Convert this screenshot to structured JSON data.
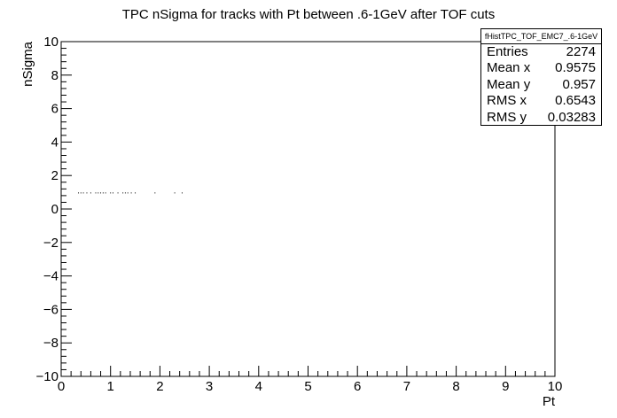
{
  "chart_data": {
    "type": "scatter",
    "title": "TPC nSigma for tracks with Pt between .6-1GeV after TOF cuts",
    "xlabel": "Pt",
    "ylabel": "nSigma",
    "xlim": [
      0,
      10
    ],
    "ylim": [
      -10,
      10
    ],
    "x_ticks": [
      0,
      1,
      2,
      3,
      4,
      5,
      6,
      7,
      8,
      9,
      10
    ],
    "y_ticks": [
      -10,
      -8,
      -6,
      -4,
      -2,
      0,
      2,
      4,
      6,
      8,
      10
    ],
    "x_tick_labels": [
      "0",
      "1",
      "2",
      "3",
      "4",
      "5",
      "6",
      "7",
      "8",
      "9",
      "10"
    ],
    "y_tick_labels": [
      "−10",
      "−8",
      "−6",
      "−4",
      "−2",
      "0",
      "2",
      "4",
      "6",
      "8",
      "10"
    ],
    "grid": false,
    "points": [
      {
        "x": 0.35,
        "y": 0.96
      },
      {
        "x": 0.4,
        "y": 0.96
      },
      {
        "x": 0.45,
        "y": 0.96
      },
      {
        "x": 0.52,
        "y": 0.96
      },
      {
        "x": 0.6,
        "y": 0.96
      },
      {
        "x": 0.7,
        "y": 0.96
      },
      {
        "x": 0.75,
        "y": 0.96
      },
      {
        "x": 0.8,
        "y": 0.96
      },
      {
        "x": 0.85,
        "y": 0.96
      },
      {
        "x": 0.9,
        "y": 0.96
      },
      {
        "x": 1.0,
        "y": 0.96
      },
      {
        "x": 1.05,
        "y": 0.96
      },
      {
        "x": 1.15,
        "y": 0.96
      },
      {
        "x": 1.25,
        "y": 0.96
      },
      {
        "x": 1.3,
        "y": 0.96
      },
      {
        "x": 1.35,
        "y": 0.96
      },
      {
        "x": 1.42,
        "y": 0.96
      },
      {
        "x": 1.5,
        "y": 0.96
      },
      {
        "x": 1.9,
        "y": 0.96
      },
      {
        "x": 2.3,
        "y": 0.96
      },
      {
        "x": 2.45,
        "y": 0.96
      }
    ]
  },
  "stats": {
    "name": "fHistTPC_TOF_EMC7_.6-1GeV",
    "entries_label": "Entries",
    "entries_value": "2274",
    "mean_x_label": "Mean x",
    "mean_x_value": "0.9575",
    "mean_y_label": "Mean y",
    "mean_y_value": "0.957",
    "rms_x_label": "RMS x",
    "rms_x_value": "0.6543",
    "rms_y_label": "RMS y",
    "rms_y_value": "0.03283"
  }
}
